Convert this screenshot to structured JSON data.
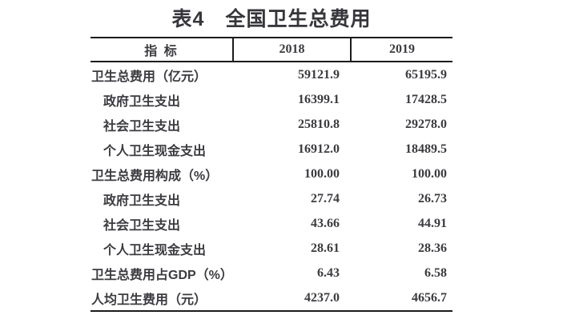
{
  "title": "表4　全国卫生总费用",
  "colors": {
    "text": "#3b3b40",
    "title": "#36363b",
    "rule_line": "#1b1b1b",
    "background": "#ffffff"
  },
  "table": {
    "columns": [
      {
        "label": "指 标"
      },
      {
        "label": "2018"
      },
      {
        "label": "2019"
      }
    ],
    "rows": [
      {
        "label": "卫生总费用（亿元）",
        "v2018": "59121.9",
        "v2019": "65195.9",
        "indent": false
      },
      {
        "label": "政府卫生支出",
        "v2018": "16399.1",
        "v2019": "17428.5",
        "indent": true
      },
      {
        "label": "社会卫生支出",
        "v2018": "25810.8",
        "v2019": "29278.0",
        "indent": true
      },
      {
        "label": "个人卫生现金支出",
        "v2018": "16912.0",
        "v2019": "18489.5",
        "indent": true
      },
      {
        "label": "卫生总费用构成（%）",
        "v2018": "100.00",
        "v2019": "100.00",
        "indent": false
      },
      {
        "label": "政府卫生支出",
        "v2018": "27.74",
        "v2019": "26.73",
        "indent": true
      },
      {
        "label": "社会卫生支出",
        "v2018": "43.66",
        "v2019": "44.91",
        "indent": true
      },
      {
        "label": "个人卫生现金支出",
        "v2018": "28.61",
        "v2019": "28.36",
        "indent": true
      },
      {
        "label": "卫生总费用占GDP（%）",
        "v2018": "6.43",
        "v2019": "6.58",
        "indent": false
      },
      {
        "label": "人均卫生费用（元）",
        "v2018": "4237.0",
        "v2019": "4656.7",
        "indent": false
      }
    ]
  }
}
